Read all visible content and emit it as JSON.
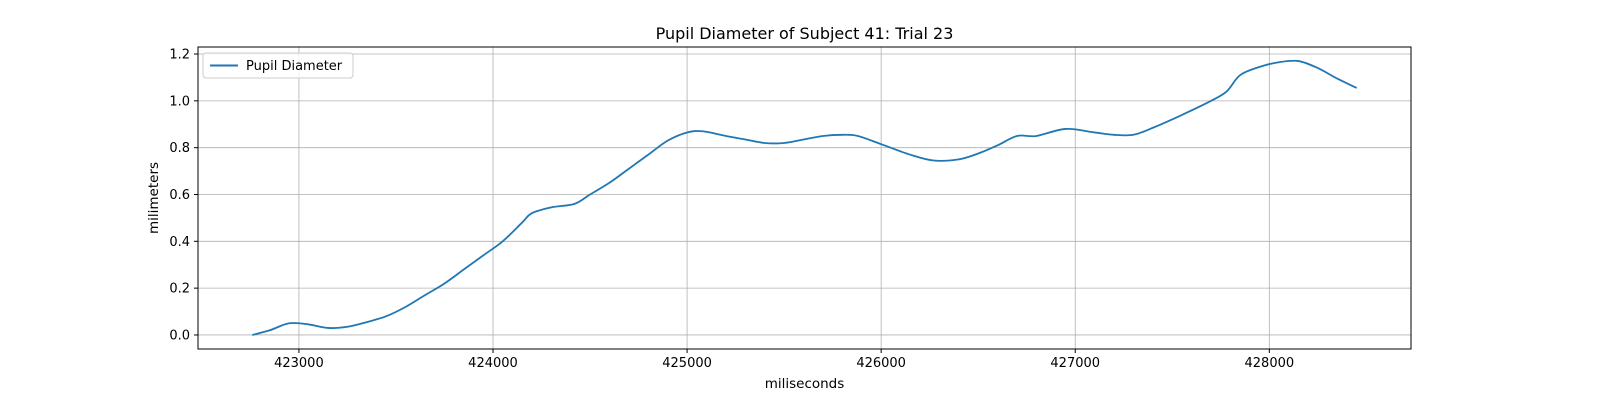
{
  "chart_data": {
    "type": "line",
    "title": "Pupil Diameter of Subject 41: Trial 23",
    "xlabel": "miliseconds",
    "ylabel": "milimeters",
    "xlim": [
      422480,
      428730
    ],
    "ylim": [
      -0.06,
      1.23
    ],
    "xticks": [
      423000,
      424000,
      425000,
      426000,
      427000,
      428000
    ],
    "yticks": [
      0.0,
      0.2,
      0.4,
      0.6,
      0.8,
      1.0,
      1.2
    ],
    "xtick_labels": [
      "423000",
      "424000",
      "425000",
      "426000",
      "427000",
      "428000"
    ],
    "ytick_labels": [
      "0.0",
      "0.2",
      "0.4",
      "0.6",
      "0.8",
      "1.0",
      "1.2"
    ],
    "grid": true,
    "legend_position": "top-left",
    "series_color": "#1f77b4",
    "series": [
      {
        "name": "Pupil Diameter",
        "x": [
          422760,
          422850,
          422950,
          423050,
          423150,
          423250,
          423350,
          423450,
          423550,
          423650,
          423750,
          423850,
          423950,
          424050,
          424150,
          424200,
          424300,
          424420,
          424500,
          424600,
          424700,
          424800,
          424900,
          425000,
          425080,
          425200,
          425300,
          425400,
          425500,
          425600,
          425700,
          425800,
          425880,
          426000,
          426150,
          426270,
          426400,
          426500,
          426600,
          426700,
          426800,
          426950,
          427100,
          427200,
          427300,
          427400,
          427550,
          427700,
          427780,
          427850,
          427950,
          428050,
          428150,
          428250,
          428350,
          428450
        ],
        "y": [
          0.0,
          0.02,
          0.05,
          0.045,
          0.03,
          0.035,
          0.055,
          0.08,
          0.12,
          0.17,
          0.22,
          0.28,
          0.34,
          0.4,
          0.48,
          0.52,
          0.545,
          0.56,
          0.6,
          0.65,
          0.71,
          0.77,
          0.83,
          0.865,
          0.87,
          0.85,
          0.835,
          0.82,
          0.82,
          0.835,
          0.85,
          0.855,
          0.85,
          0.815,
          0.77,
          0.745,
          0.75,
          0.775,
          0.81,
          0.85,
          0.85,
          0.88,
          0.865,
          0.855,
          0.855,
          0.885,
          0.94,
          1.0,
          1.04,
          1.11,
          1.145,
          1.165,
          1.17,
          1.14,
          1.095,
          1.055
        ]
      }
    ]
  }
}
